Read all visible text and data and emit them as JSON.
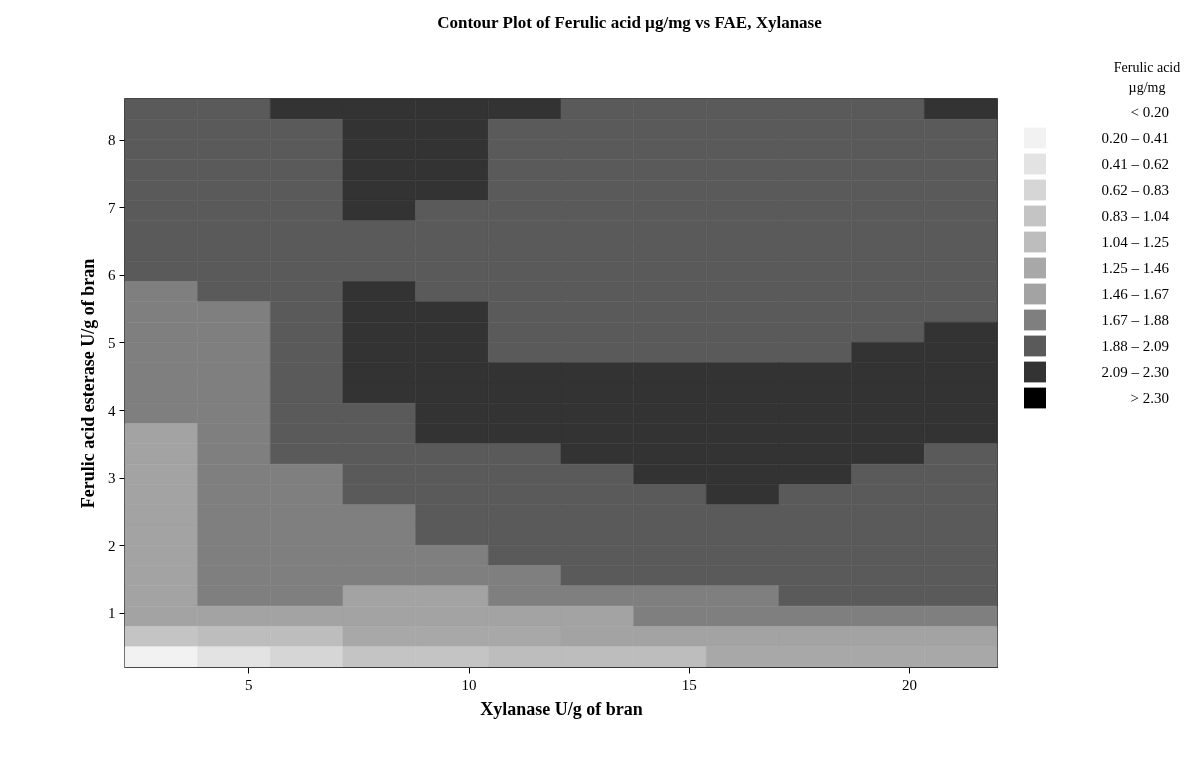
{
  "chart_data": {
    "type": "heatmap",
    "title": "Contour Plot of Ferulic acid µg/mg vs FAE, Xylanase",
    "xlabel": "Xylanase U/g of bran",
    "ylabel": "Ferulic acid esterase U/g of bran",
    "legend_title": "Ferulic acid\nµg/mg",
    "x": [
      3.025,
      4.675,
      6.325,
      7.975,
      9.625,
      11.275,
      12.925,
      14.575,
      16.225,
      17.875,
      19.525,
      21.175
    ],
    "y": [
      8.45,
      8.15,
      7.85,
      7.55,
      7.25,
      6.95,
      6.65,
      6.35,
      6.05,
      5.75,
      5.45,
      5.15,
      4.85,
      4.55,
      4.25,
      3.95,
      3.65,
      3.35,
      3.05,
      2.75,
      2.45,
      2.15,
      1.85,
      1.55,
      1.25,
      0.95,
      0.65,
      0.35
    ],
    "xlim": [
      2.2,
      22
    ],
    "xticks": [
      5,
      10,
      15,
      20
    ],
    "ylim": [
      0.2,
      8.6
    ],
    "yticks": [
      1,
      2,
      3,
      4,
      5,
      6,
      7,
      8
    ],
    "annotations": [
      "< 0.20"
    ],
    "cticks": [
      {
        "value": 0.2,
        "label": "0.20  –  0.41"
      },
      {
        "value": 0.41,
        "label": "0.41  –  0.62"
      },
      {
        "value": 0.62,
        "label": "0.62  –  0.83"
      },
      {
        "value": 0.83,
        "label": "0.83  –  1.04"
      },
      {
        "value": 1.04,
        "label": "1.04  –  1.25"
      },
      {
        "value": 1.25,
        "label": "1.25  –  1.46"
      },
      {
        "value": 1.46,
        "label": "1.46  –  1.67"
      },
      {
        "value": 1.67,
        "label": "1.67  –  1.88"
      },
      {
        "value": 1.88,
        "label": "1.88  –  2.09"
      },
      {
        "value": 2.09,
        "label": "2.09  –  2.30"
      },
      {
        "value": 2.3,
        "label": "> 2.30"
      }
    ],
    "colors": [
      "#ffffff",
      "#f2f2f2",
      "#e3e3e3",
      "#d6d6d6",
      "#c4c4c4",
      "#bdbdbd",
      "#a8a8a8",
      "#a3a3a3",
      "#7f7f7f",
      "#5a5a5a",
      "#333333",
      "#000000"
    ],
    "cells": [
      [
        1.99,
        1.99,
        2.2,
        2.2,
        2.2,
        2.2,
        1.99,
        1.99,
        1.99,
        1.99,
        1.99,
        2.2
      ],
      [
        1.99,
        1.99,
        1.99,
        2.2,
        2.2,
        1.99,
        1.99,
        1.99,
        1.99,
        1.99,
        1.99,
        1.99
      ],
      [
        1.99,
        1.99,
        1.99,
        2.2,
        2.2,
        1.99,
        1.99,
        1.99,
        1.99,
        1.99,
        1.99,
        1.99
      ],
      [
        1.99,
        1.99,
        1.99,
        2.2,
        2.2,
        1.99,
        1.99,
        1.99,
        1.99,
        1.99,
        1.99,
        1.99
      ],
      [
        1.99,
        1.99,
        1.99,
        2.2,
        2.2,
        1.99,
        1.99,
        1.99,
        1.99,
        1.99,
        1.99,
        1.99
      ],
      [
        1.99,
        1.99,
        1.99,
        2.2,
        1.99,
        1.99,
        1.99,
        1.99,
        1.99,
        1.99,
        1.99,
        1.99
      ],
      [
        1.99,
        1.99,
        1.99,
        1.99,
        1.99,
        1.99,
        1.99,
        1.99,
        1.99,
        1.99,
        1.99,
        1.99
      ],
      [
        1.99,
        1.99,
        1.99,
        1.99,
        1.99,
        1.99,
        1.99,
        1.99,
        1.99,
        1.99,
        1.99,
        1.99
      ],
      [
        1.99,
        1.99,
        1.99,
        1.99,
        1.99,
        1.99,
        1.99,
        1.99,
        1.99,
        1.99,
        1.99,
        1.99
      ],
      [
        1.78,
        1.99,
        1.99,
        2.2,
        1.99,
        1.99,
        1.99,
        1.99,
        1.99,
        1.99,
        1.99,
        1.99
      ],
      [
        1.78,
        1.78,
        1.99,
        2.2,
        2.2,
        1.99,
        1.99,
        1.99,
        1.99,
        1.99,
        1.99,
        1.99
      ],
      [
        1.78,
        1.78,
        1.99,
        2.2,
        2.2,
        1.99,
        1.99,
        1.99,
        1.99,
        1.99,
        1.99,
        2.2
      ],
      [
        1.78,
        1.78,
        1.99,
        2.2,
        2.2,
        1.99,
        1.99,
        1.99,
        1.99,
        1.99,
        2.2,
        2.2
      ],
      [
        1.78,
        1.78,
        1.99,
        2.2,
        2.2,
        2.2,
        2.2,
        2.2,
        2.2,
        2.2,
        2.2,
        2.2
      ],
      [
        1.78,
        1.78,
        1.99,
        2.2,
        2.2,
        2.2,
        2.2,
        2.2,
        2.2,
        2.2,
        2.2,
        2.2
      ],
      [
        1.78,
        1.78,
        1.99,
        1.99,
        2.2,
        2.2,
        2.2,
        2.2,
        2.2,
        2.2,
        2.2,
        2.2
      ],
      [
        1.57,
        1.78,
        1.99,
        1.99,
        2.2,
        2.2,
        2.2,
        2.2,
        2.2,
        2.2,
        2.2,
        2.2
      ],
      [
        1.57,
        1.78,
        1.99,
        1.99,
        1.99,
        1.99,
        2.2,
        2.2,
        2.2,
        2.2,
        2.2,
        1.99
      ],
      [
        1.57,
        1.78,
        1.78,
        1.99,
        1.99,
        1.99,
        1.99,
        2.2,
        2.2,
        2.2,
        1.99,
        1.99
      ],
      [
        1.57,
        1.78,
        1.78,
        1.99,
        1.99,
        1.99,
        1.99,
        1.99,
        2.2,
        1.99,
        1.99,
        1.99
      ],
      [
        1.57,
        1.78,
        1.78,
        1.78,
        1.99,
        1.99,
        1.99,
        1.99,
        1.99,
        1.99,
        1.99,
        1.99
      ],
      [
        1.57,
        1.78,
        1.78,
        1.78,
        1.99,
        1.99,
        1.99,
        1.99,
        1.99,
        1.99,
        1.99,
        1.99
      ],
      [
        1.57,
        1.78,
        1.78,
        1.78,
        1.78,
        1.99,
        1.99,
        1.99,
        1.99,
        1.99,
        1.99,
        1.99
      ],
      [
        1.57,
        1.78,
        1.78,
        1.78,
        1.78,
        1.78,
        1.99,
        1.99,
        1.99,
        1.99,
        1.99,
        1.99
      ],
      [
        1.57,
        1.78,
        1.78,
        1.57,
        1.57,
        1.78,
        1.78,
        1.78,
        1.78,
        1.99,
        1.99,
        1.99
      ],
      [
        1.57,
        1.57,
        1.57,
        1.57,
        1.57,
        1.57,
        1.57,
        1.78,
        1.78,
        1.78,
        1.78,
        1.78
      ],
      [
        0.94,
        1.15,
        1.15,
        1.36,
        1.36,
        1.36,
        1.57,
        1.57,
        1.57,
        1.57,
        1.57,
        1.57
      ],
      [
        0.31,
        0.52,
        0.73,
        0.94,
        0.94,
        1.15,
        1.15,
        1.15,
        1.36,
        1.36,
        1.36,
        1.36
      ]
    ]
  }
}
